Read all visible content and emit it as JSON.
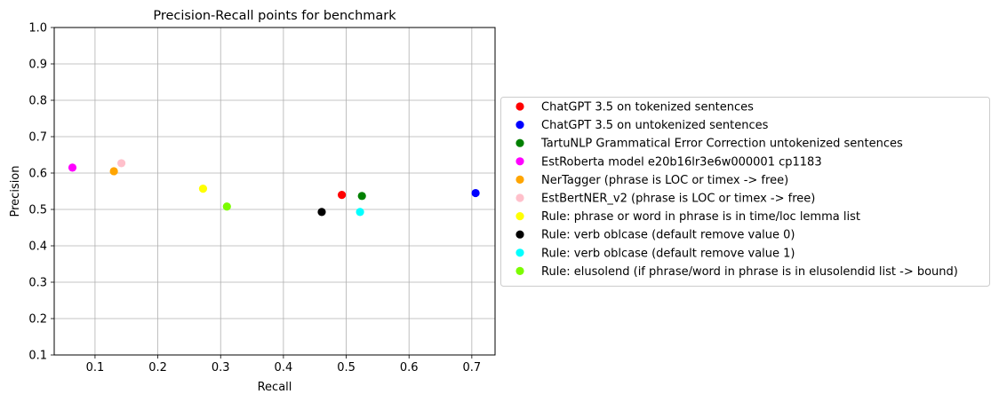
{
  "chart_data": {
    "type": "scatter",
    "title": "Precision-Recall points for benchmark",
    "xlabel": "Recall",
    "ylabel": "Precision",
    "xlim": [
      0.035,
      0.737
    ],
    "ylim": [
      0.1,
      1.0
    ],
    "xticks": [
      0.1,
      0.2,
      0.3,
      0.4,
      0.5,
      0.6,
      0.7
    ],
    "xtick_labels": [
      "0.1",
      "0.2",
      "0.3",
      "0.4",
      "0.5",
      "0.6",
      "0.7"
    ],
    "yticks": [
      0.1,
      0.2,
      0.3,
      0.4,
      0.5,
      0.6,
      0.7,
      0.8,
      0.9,
      1.0
    ],
    "ytick_labels": [
      "0.1",
      "0.2",
      "0.3",
      "0.4",
      "0.5",
      "0.6",
      "0.7",
      "0.8",
      "0.9",
      "1.0"
    ],
    "grid": true,
    "legend_placement": "right, outside plot area",
    "series": [
      {
        "name": "ChatGPT 3.5 on tokenized sentences",
        "color": "#ff0000",
        "x": 0.493,
        "y": 0.54
      },
      {
        "name": "ChatGPT 3.5 on untokenized sentences",
        "color": "#0000ff",
        "x": 0.706,
        "y": 0.545
      },
      {
        "name": "TartuNLP Grammatical Error Correction untokenized sentences",
        "color": "#008000",
        "x": 0.525,
        "y": 0.537
      },
      {
        "name": "EstRoberta model e20b16lr3e6w000001 cp1183",
        "color": "#ff00ff",
        "x": 0.064,
        "y": 0.615
      },
      {
        "name": "NerTagger (phrase is LOC or timex -> free)",
        "color": "#ffa500",
        "x": 0.13,
        "y": 0.605
      },
      {
        "name": "EstBertNER_v2 (phrase is LOC or timex -> free)",
        "color": "#ffc0cb",
        "x": 0.142,
        "y": 0.627
      },
      {
        "name": "Rule: phrase or word in phrase is in time/loc lemma list",
        "color": "#ffff00",
        "x": 0.272,
        "y": 0.557
      },
      {
        "name": "Rule: verb oblcase (default remove value 0)",
        "color": "#000000",
        "x": 0.461,
        "y": 0.493
      },
      {
        "name": "Rule: verb oblcase (default remove value 1)",
        "color": "#00ffff",
        "x": 0.522,
        "y": 0.493
      },
      {
        "name": "Rule: elusolend (if phrase/word in phrase is in elusolendid list -> bound)",
        "color": "#7cfc00",
        "x": 0.31,
        "y": 0.508
      }
    ]
  }
}
